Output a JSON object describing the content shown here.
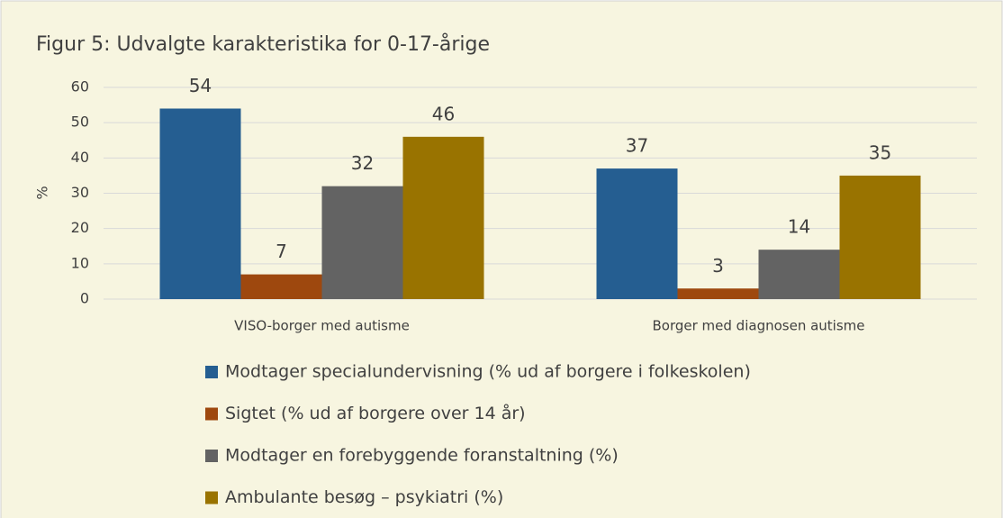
{
  "chart_data": {
    "type": "bar",
    "title": "Figur 5: Udvalgte karakteristika for 0-17-årige",
    "y_label": "%",
    "categories": [
      "VISO-borger med autisme",
      "Borger med diagnosen autisme"
    ],
    "series": [
      {
        "name": "Modtager specialundervisning (% ud af borgere i folkeskolen)",
        "color": "#255e91",
        "values": [
          54,
          37
        ]
      },
      {
        "name": "Sigtet (% ud af borgere over 14 år)",
        "color": "#9e480e",
        "values": [
          7,
          3
        ]
      },
      {
        "name": "Modtager en forebyggende foranstaltning (%)",
        "color": "#636363",
        "values": [
          32,
          14
        ]
      },
      {
        "name": "Ambulante besøg – psykiatri (%)",
        "color": "#997300",
        "values": [
          46,
          35
        ]
      }
    ],
    "ylim": [
      0,
      60
    ],
    "yticks": [
      0,
      10,
      20,
      30,
      40,
      50,
      60
    ],
    "grid": true,
    "legend": "bottom"
  }
}
